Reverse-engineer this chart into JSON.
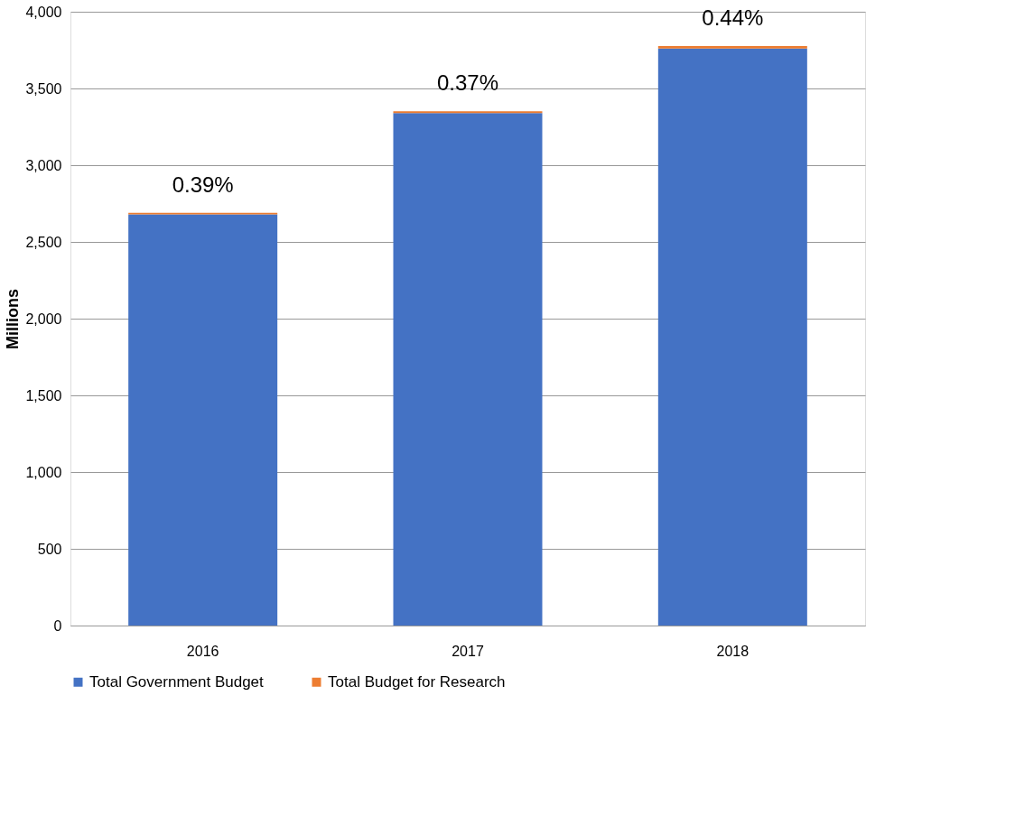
{
  "chart_data": {
    "type": "bar",
    "stacked": true,
    "ylabel": "Millions",
    "categories": [
      "2016",
      "2017",
      "2018"
    ],
    "series": [
      {
        "name": "Total Government Budget",
        "color": "#4472c4",
        "values": [
          2680,
          3340,
          3760
        ]
      },
      {
        "name": "Total Budget for Research",
        "color": "#ed7d31",
        "values": [
          10,
          12,
          17
        ]
      }
    ],
    "ylim": [
      0,
      4000
    ],
    "yticks": [
      0,
      500,
      {
        "value": 1000,
        "label": "1,000"
      },
      {
        "value": 1500,
        "label": "1,500"
      },
      {
        "value": 2000,
        "label": "2,000"
      },
      {
        "value": 2500,
        "label": "2,500"
      },
      {
        "value": 3000,
        "label": "3,000"
      },
      {
        "value": 3500,
        "label": "3,500"
      },
      {
        "value": 4000,
        "label": "4,000"
      }
    ],
    "annotations": [
      {
        "text": "0.39%",
        "x": "2016",
        "y": 2690
      },
      {
        "text": "0.37%",
        "x": "2017",
        "y": 3352
      },
      {
        "text": "0.44%",
        "x": "2018",
        "y": 3777
      }
    ],
    "grid": "y",
    "legend": "bottom"
  }
}
